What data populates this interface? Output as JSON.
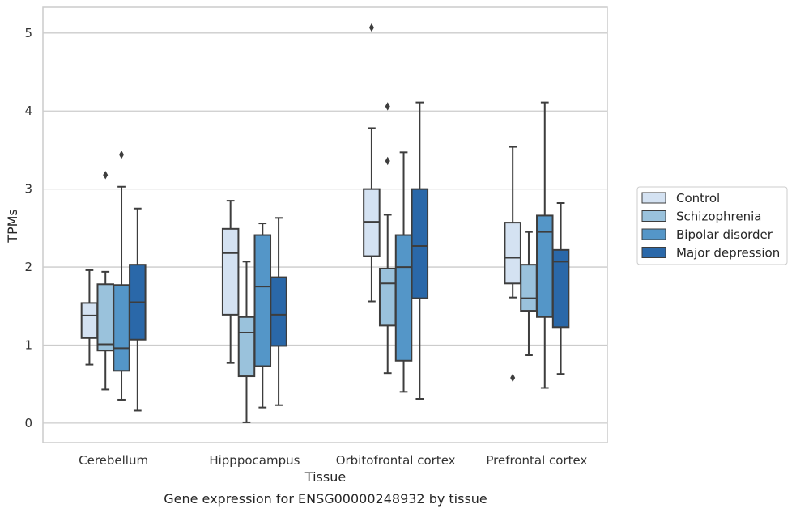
{
  "caption": "Gene expression for ENSG00000248932 by tissue",
  "chart_data": {
    "type": "box",
    "xlabel": "Tissue",
    "ylabel": "TPMs",
    "ylim": [
      -0.25,
      5.33
    ],
    "yticks": [
      0,
      1,
      2,
      3,
      4,
      5
    ],
    "grid": "horizontal",
    "legend_position": "right",
    "categories": [
      "Cerebellum",
      "Hipppocampus",
      "Orbitofrontal cortex",
      "Prefrontal cortex"
    ],
    "series": [
      {
        "name": "Control",
        "color": "#d4e2f2",
        "boxes": [
          {
            "whisker_low": 0.75,
            "q1": 1.09,
            "median": 1.38,
            "q3": 1.54,
            "whisker_high": 1.96,
            "outliers": []
          },
          {
            "whisker_low": 0.77,
            "q1": 1.39,
            "median": 2.18,
            "q3": 2.49,
            "whisker_high": 2.85,
            "outliers": []
          },
          {
            "whisker_low": 1.56,
            "q1": 2.14,
            "median": 2.58,
            "q3": 3.0,
            "whisker_high": 3.78,
            "outliers": [
              5.07
            ]
          },
          {
            "whisker_low": 1.61,
            "q1": 1.79,
            "median": 2.12,
            "q3": 2.57,
            "whisker_high": 3.54,
            "outliers": [
              0.58
            ]
          }
        ]
      },
      {
        "name": "Schizophrenia",
        "color": "#9ac2dc",
        "boxes": [
          {
            "whisker_low": 0.43,
            "q1": 0.93,
            "median": 1.01,
            "q3": 1.78,
            "whisker_high": 1.94,
            "outliers": [
              3.18
            ]
          },
          {
            "whisker_low": 0.01,
            "q1": 0.6,
            "median": 1.16,
            "q3": 1.36,
            "whisker_high": 2.07,
            "outliers": []
          },
          {
            "whisker_low": 0.64,
            "q1": 1.25,
            "median": 1.79,
            "q3": 1.98,
            "whisker_high": 2.67,
            "outliers": [
              3.36,
              4.06
            ]
          },
          {
            "whisker_low": 0.87,
            "q1": 1.44,
            "median": 1.6,
            "q3": 2.03,
            "whisker_high": 2.45,
            "outliers": []
          }
        ]
      },
      {
        "name": "Bipolar disorder",
        "color": "#5496c8",
        "boxes": [
          {
            "whisker_low": 0.3,
            "q1": 0.67,
            "median": 0.96,
            "q3": 1.77,
            "whisker_high": 3.03,
            "outliers": [
              3.44
            ]
          },
          {
            "whisker_low": 0.2,
            "q1": 0.73,
            "median": 1.75,
            "q3": 2.41,
            "whisker_high": 2.56,
            "outliers": []
          },
          {
            "whisker_low": 0.4,
            "q1": 0.8,
            "median": 2.0,
            "q3": 2.41,
            "whisker_high": 3.47,
            "outliers": []
          },
          {
            "whisker_low": 0.45,
            "q1": 1.36,
            "median": 2.45,
            "q3": 2.66,
            "whisker_high": 4.11,
            "outliers": []
          }
        ]
      },
      {
        "name": "Major depression",
        "color": "#2a68a9",
        "boxes": [
          {
            "whisker_low": 0.16,
            "q1": 1.07,
            "median": 1.55,
            "q3": 2.03,
            "whisker_high": 2.75,
            "outliers": []
          },
          {
            "whisker_low": 0.23,
            "q1": 0.99,
            "median": 1.39,
            "q3": 1.87,
            "whisker_high": 2.63,
            "outliers": []
          },
          {
            "whisker_low": 0.31,
            "q1": 1.6,
            "median": 2.27,
            "q3": 3.0,
            "whisker_high": 4.11,
            "outliers": []
          },
          {
            "whisker_low": 0.63,
            "q1": 1.23,
            "median": 2.07,
            "q3": 2.22,
            "whisker_high": 2.82,
            "outliers": []
          }
        ]
      }
    ]
  }
}
